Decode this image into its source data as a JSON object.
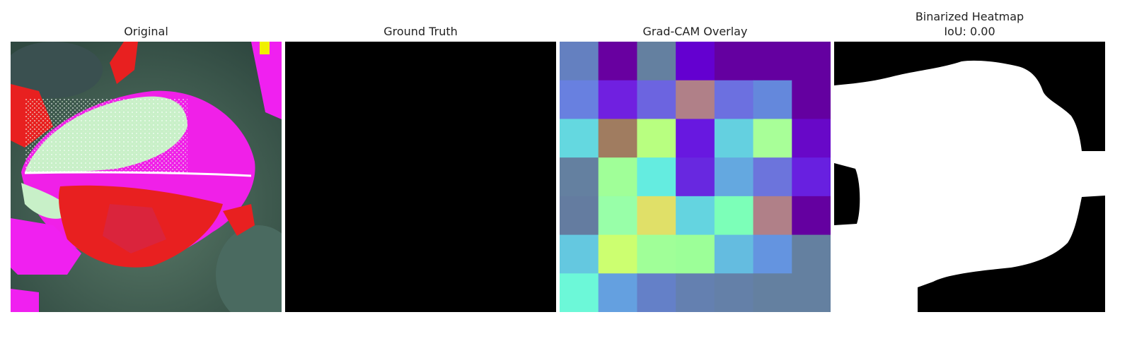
{
  "panels": [
    {
      "title": "Original"
    },
    {
      "title": "Ground Truth"
    },
    {
      "title": "Grad-CAM Overlay"
    },
    {
      "title": "Binarized Heatmap",
      "subtitle": "IoU: 0.00"
    }
  ],
  "gradcam_grid": [
    [
      "#6480c0",
      "#6800a0",
      "#6480a0",
      "#6400d0",
      "#6400a0",
      "#6400a0",
      "#6400a0"
    ],
    [
      "#6880e0",
      "#7020e0",
      "#6c64e0",
      "#b08088",
      "#6c70e0",
      "#6488dc",
      "#6400a0"
    ],
    [
      "#64d8e0",
      "#a07c60",
      "#b8ff80",
      "#6818e0",
      "#64d0e0",
      "#a8ff98",
      "#6808c8"
    ],
    [
      "#6480a0",
      "#a0ff98",
      "#64ece0",
      "#6828e0",
      "#64a8e0",
      "#6c74dc",
      "#6820e0"
    ],
    [
      "#647ca0",
      "#98ffa8",
      "#e0e068",
      "#64d4e0",
      "#7cffb8",
      "#b08088",
      "#6400a0"
    ],
    [
      "#64c8e0",
      "#ccff70",
      "#a0ff98",
      "#9cff98",
      "#64bce0",
      "#6494e0",
      "#6480a0"
    ],
    [
      "#6cf8d8",
      "#64a0e0",
      "#6480c8",
      "#6480b0",
      "#6480a8",
      "#6480a0",
      "#6480a0"
    ]
  ]
}
